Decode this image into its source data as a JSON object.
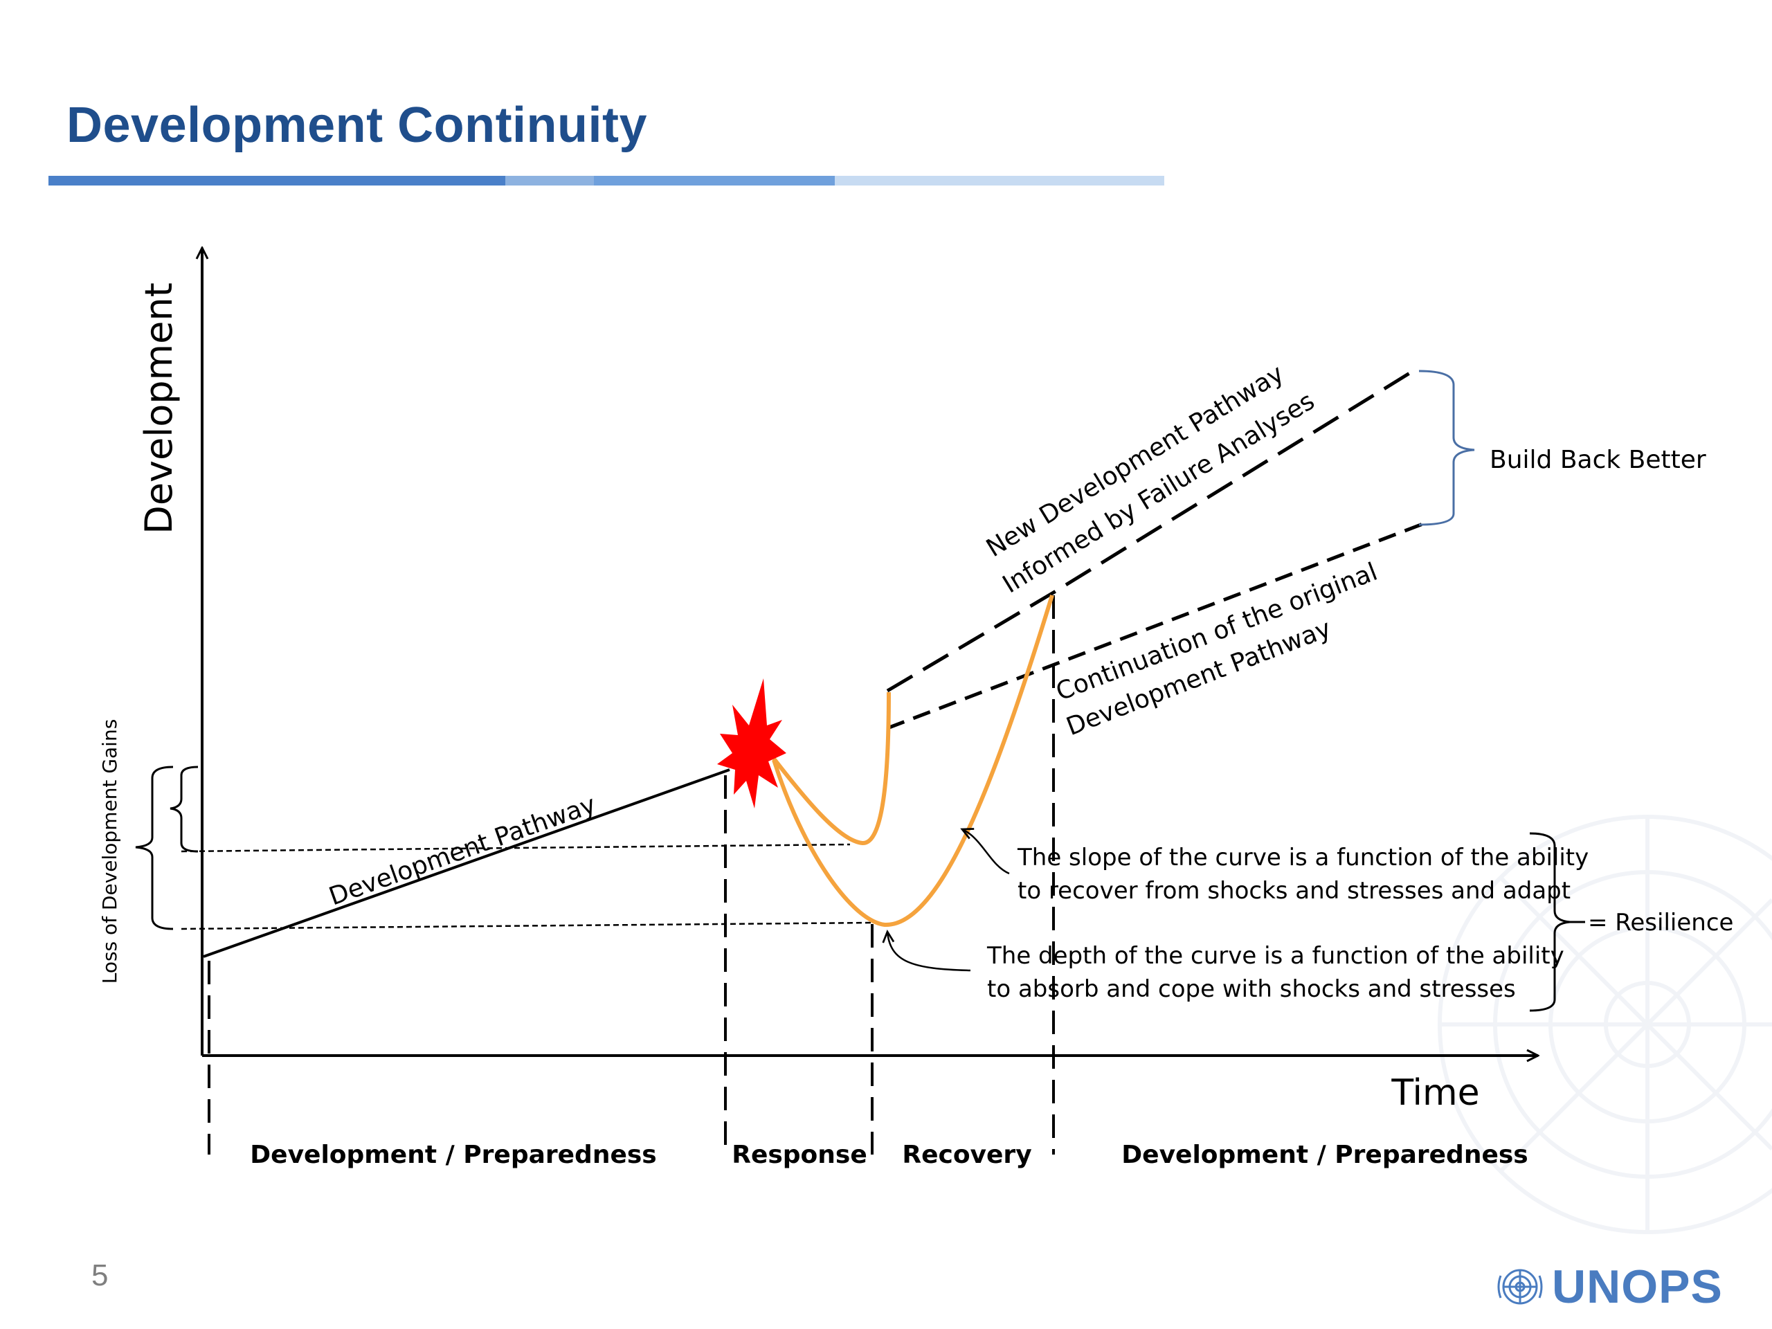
{
  "slide": {
    "title": "Development Continuity",
    "page_number": "5",
    "logo_text": "UNOPS",
    "logo_icon": "un-emblem-icon",
    "background_icon": "un-emblem-watermark-icon"
  },
  "diagram": {
    "y_axis_label": "Development",
    "x_axis_label": "Time",
    "labels": {
      "development_pathway": "Development Pathway",
      "new_pathway_line1": "New Development Pathway",
      "new_pathway_line2": "Informed by Failure Analyses",
      "continuation_line1": "Continuation of the original",
      "continuation_line2": "Development Pathway",
      "build_back_better": "Build Back Better",
      "loss_of_gains": "Loss of Development Gains",
      "slope_line1": "The slope of the curve is a function of the ability",
      "slope_line2": "to recover from shocks and stresses and adapt",
      "depth_line1": "The depth of the curve is a function of the ability",
      "depth_line2": "to absorb and cope with shocks and stresses",
      "resilience": "= Resilience"
    },
    "phases": [
      "Development / Preparedness",
      "Response",
      "Recovery",
      "Development / Preparedness"
    ],
    "colors": {
      "recovery_curve": "#f5a33d",
      "shock_burst": "#ff0000",
      "brace": "#4a6fa5",
      "lines": "#000000"
    }
  }
}
